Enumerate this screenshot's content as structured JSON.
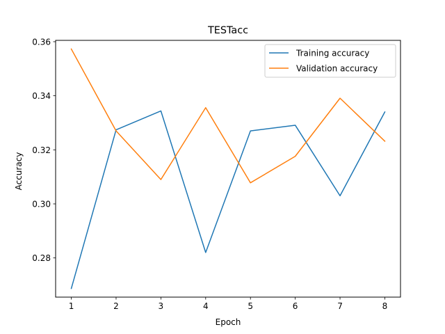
{
  "chart_data": {
    "type": "line",
    "title": "TESTacc",
    "xlabel": "Epoch",
    "ylabel": "Accuracy",
    "x": [
      1,
      2,
      3,
      4,
      5,
      6,
      7,
      8
    ],
    "xticks": [
      "1",
      "2",
      "3",
      "4",
      "5",
      "6",
      "7",
      "8"
    ],
    "yticks": [
      "0.28",
      "0.30",
      "0.32",
      "0.34",
      "0.36"
    ],
    "xlim": [
      0.65,
      8.35
    ],
    "ylim": [
      0.2655,
      0.3605
    ],
    "grid": false,
    "legend_position": "upper right",
    "series": [
      {
        "name": "Training accuracy",
        "color": "#1f77b4",
        "values": [
          0.2687,
          0.3274,
          0.3344,
          0.282,
          0.327,
          0.3291,
          0.303,
          0.334
        ]
      },
      {
        "name": "Validation accuracy",
        "color": "#ff7f0e",
        "values": [
          0.3573,
          0.327,
          0.309,
          0.3356,
          0.3078,
          0.3176,
          0.3391,
          0.3232
        ]
      }
    ]
  }
}
